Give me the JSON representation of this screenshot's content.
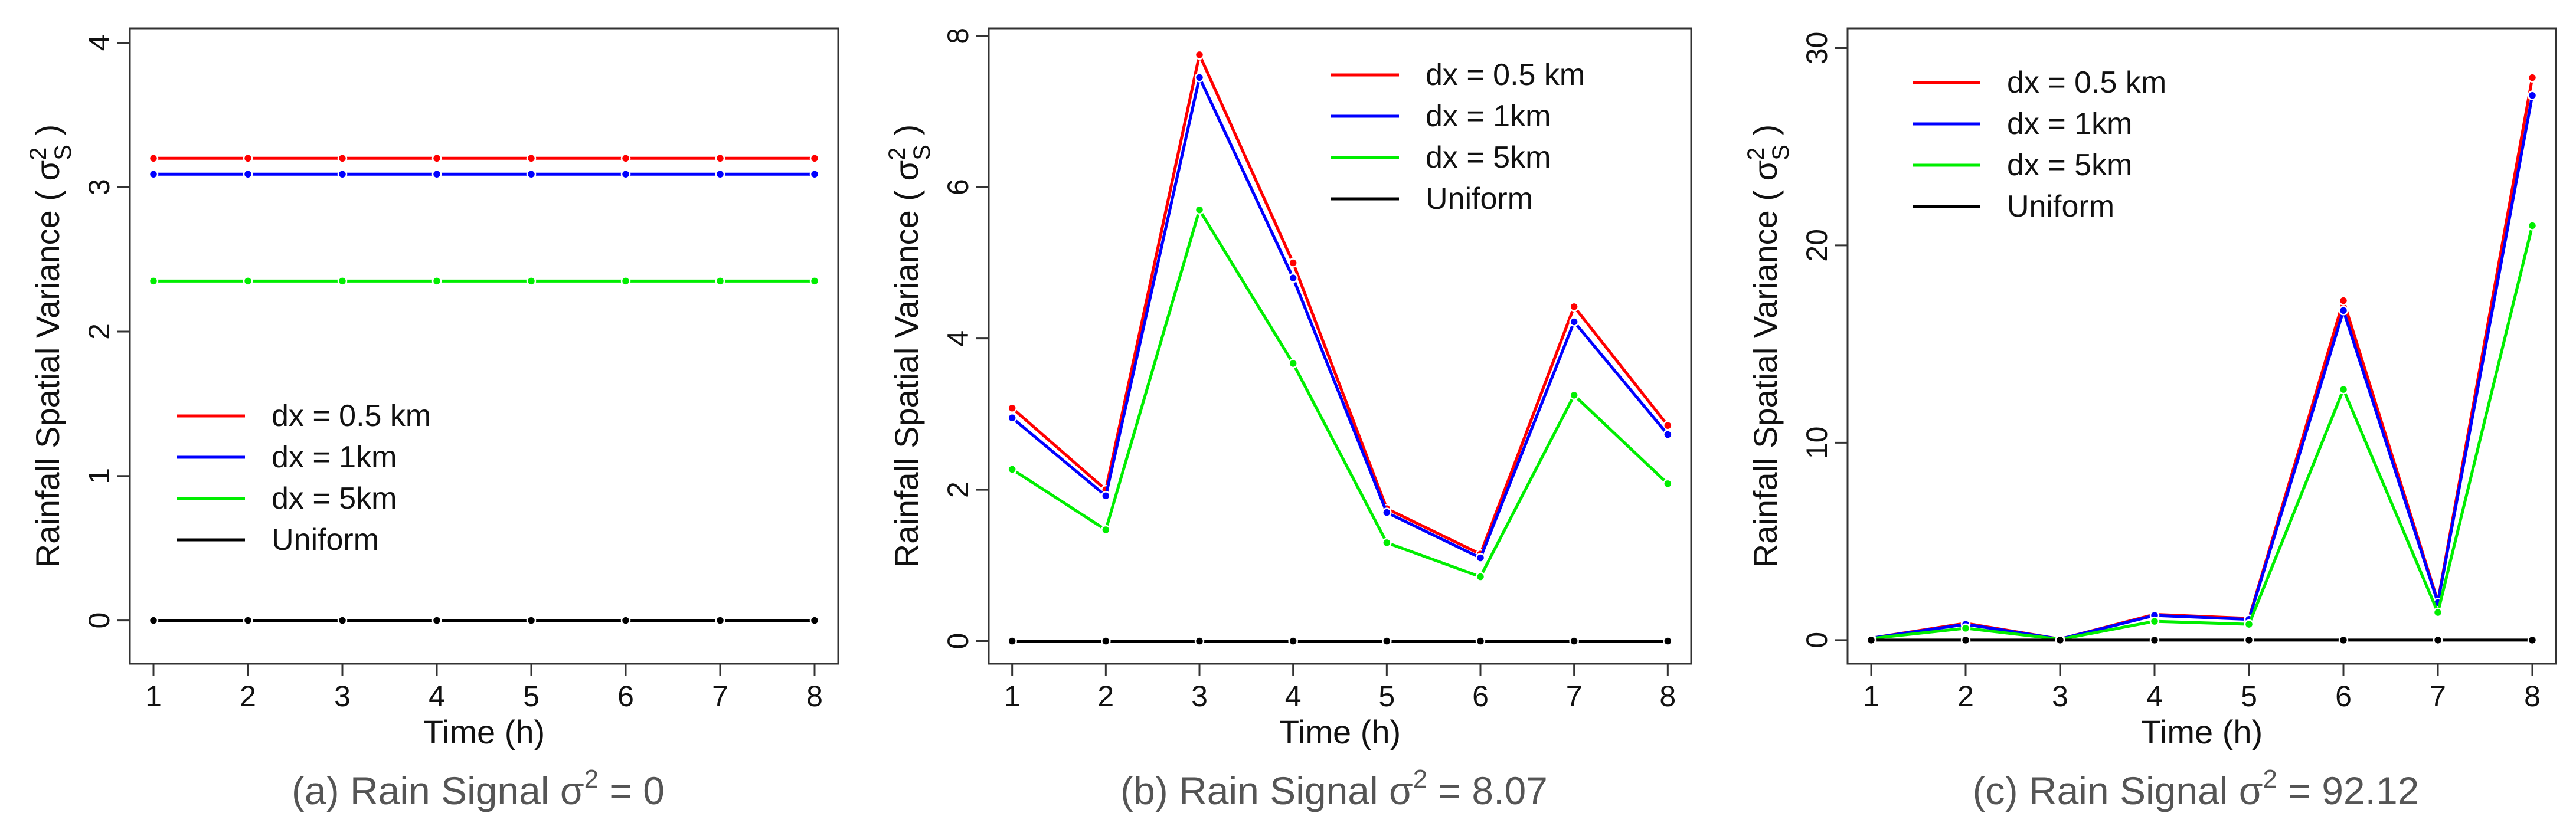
{
  "chart_data": [
    {
      "type": "line",
      "caption": "(a) Rain Signal σ² = 0",
      "caption_prefix": "(a) Rain Signal σ",
      "caption_sup": "2",
      "caption_suffix": " = 0",
      "xlabel": "Time (h)",
      "ylabel_prefix": "Rainfall Spatial Variance ( σ",
      "ylabel_sub": "S",
      "ylabel_sup": "2",
      "ylabel_suffix": " )",
      "x": [
        1,
        2,
        3,
        4,
        5,
        6,
        7,
        8
      ],
      "xticks": [
        "1",
        "2",
        "3",
        "4",
        "5",
        "6",
        "7",
        "8"
      ],
      "ylim": [
        -0.3,
        4.1
      ],
      "yticks": [
        0,
        1,
        2,
        3,
        4
      ],
      "ytick_labels": [
        "0",
        "1",
        "2",
        "3",
        "4"
      ],
      "legend_position": "center-left",
      "series": [
        {
          "name": "dx = 0.5 km",
          "color": "#ff0000",
          "values": [
            3.2,
            3.2,
            3.2,
            3.2,
            3.2,
            3.2,
            3.2,
            3.2
          ]
        },
        {
          "name": "dx = 1km",
          "color": "#0000ff",
          "values": [
            3.09,
            3.09,
            3.09,
            3.09,
            3.09,
            3.09,
            3.09,
            3.09
          ]
        },
        {
          "name": "dx = 5km",
          "color": "#00ee00",
          "values": [
            2.35,
            2.35,
            2.35,
            2.35,
            2.35,
            2.35,
            2.35,
            2.35
          ]
        },
        {
          "name": "Uniform",
          "color": "#000000",
          "values": [
            0,
            0,
            0,
            0,
            0,
            0,
            0,
            0
          ]
        }
      ]
    },
    {
      "type": "line",
      "caption": "(b) Rain Signal σ² = 8.07",
      "caption_prefix": "(b) Rain Signal σ",
      "caption_sup": "2",
      "caption_suffix": " = 8.07",
      "xlabel": "Time (h)",
      "ylabel_prefix": "Rainfall Spatial Variance ( σ",
      "ylabel_sub": "S",
      "ylabel_sup": "2",
      "ylabel_suffix": " )",
      "x": [
        1,
        2,
        3,
        4,
        5,
        6,
        7,
        8
      ],
      "xticks": [
        "1",
        "2",
        "3",
        "4",
        "5",
        "6",
        "7",
        "8"
      ],
      "ylim": [
        -0.3,
        8.1
      ],
      "yticks": [
        0,
        2,
        4,
        6,
        8
      ],
      "ytick_labels": [
        "0",
        "2",
        "4",
        "6",
        "8"
      ],
      "legend_position": "top-right",
      "series": [
        {
          "name": "dx = 0.5 km",
          "color": "#ff0000",
          "values": [
            3.08,
            2.0,
            7.75,
            5.0,
            1.75,
            1.15,
            4.42,
            2.85
          ]
        },
        {
          "name": "dx = 1km",
          "color": "#0000ff",
          "values": [
            2.95,
            1.92,
            7.45,
            4.8,
            1.7,
            1.1,
            4.22,
            2.73
          ]
        },
        {
          "name": "dx = 5km",
          "color": "#00ee00",
          "values": [
            2.27,
            1.47,
            5.7,
            3.67,
            1.3,
            0.85,
            3.25,
            2.08
          ]
        },
        {
          "name": "Uniform",
          "color": "#000000",
          "values": [
            0,
            0,
            0,
            0,
            0,
            0,
            0,
            0
          ]
        }
      ]
    },
    {
      "type": "line",
      "caption": "(c) Rain Signal σ² = 92.12",
      "caption_prefix": "(c) Rain Signal σ",
      "caption_sup": "2",
      "caption_suffix": " = 92.12",
      "xlabel": "Time (h)",
      "ylabel_prefix": "Rainfall Spatial Variance ( σ",
      "ylabel_sub": "S",
      "ylabel_sup": "2",
      "ylabel_suffix": " )",
      "x": [
        1,
        2,
        3,
        4,
        5,
        6,
        7,
        8
      ],
      "xticks": [
        "1",
        "2",
        "3",
        "4",
        "5",
        "6",
        "7",
        "8"
      ],
      "ylim": [
        -1.2,
        31
      ],
      "yticks": [
        0,
        10,
        20,
        30
      ],
      "ytick_labels": [
        "0",
        "10",
        "20",
        "30"
      ],
      "legend_position": "top-left",
      "series": [
        {
          "name": "dx = 0.5 km",
          "color": "#ff0000",
          "values": [
            0.1,
            0.85,
            0.05,
            1.3,
            1.1,
            17.2,
            1.95,
            28.5
          ]
        },
        {
          "name": "dx = 1km",
          "color": "#0000ff",
          "values": [
            0.1,
            0.8,
            0.05,
            1.25,
            1.05,
            16.7,
            1.9,
            27.6
          ]
        },
        {
          "name": "dx = 5km",
          "color": "#00ee00",
          "values": [
            0.08,
            0.6,
            0.04,
            0.95,
            0.8,
            12.7,
            1.4,
            21.0
          ]
        },
        {
          "name": "Uniform",
          "color": "#000000",
          "values": [
            0,
            0,
            0,
            0,
            0,
            0,
            0,
            0
          ]
        }
      ]
    }
  ]
}
